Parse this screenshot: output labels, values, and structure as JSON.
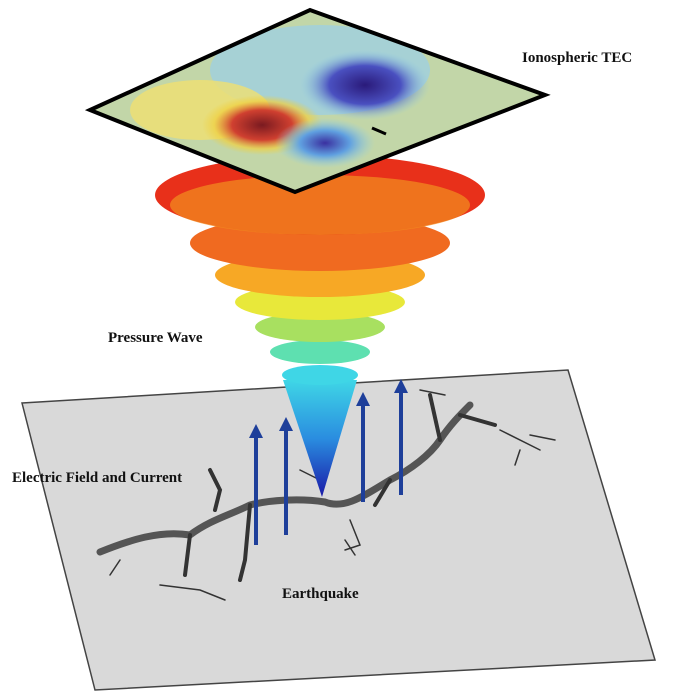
{
  "labels": {
    "ionosphere": "Ionospheric TEC",
    "pressure_wave": "Pressure Wave",
    "electric_field": "Electric Field and Current",
    "earthquake": "Earthquake"
  }
}
